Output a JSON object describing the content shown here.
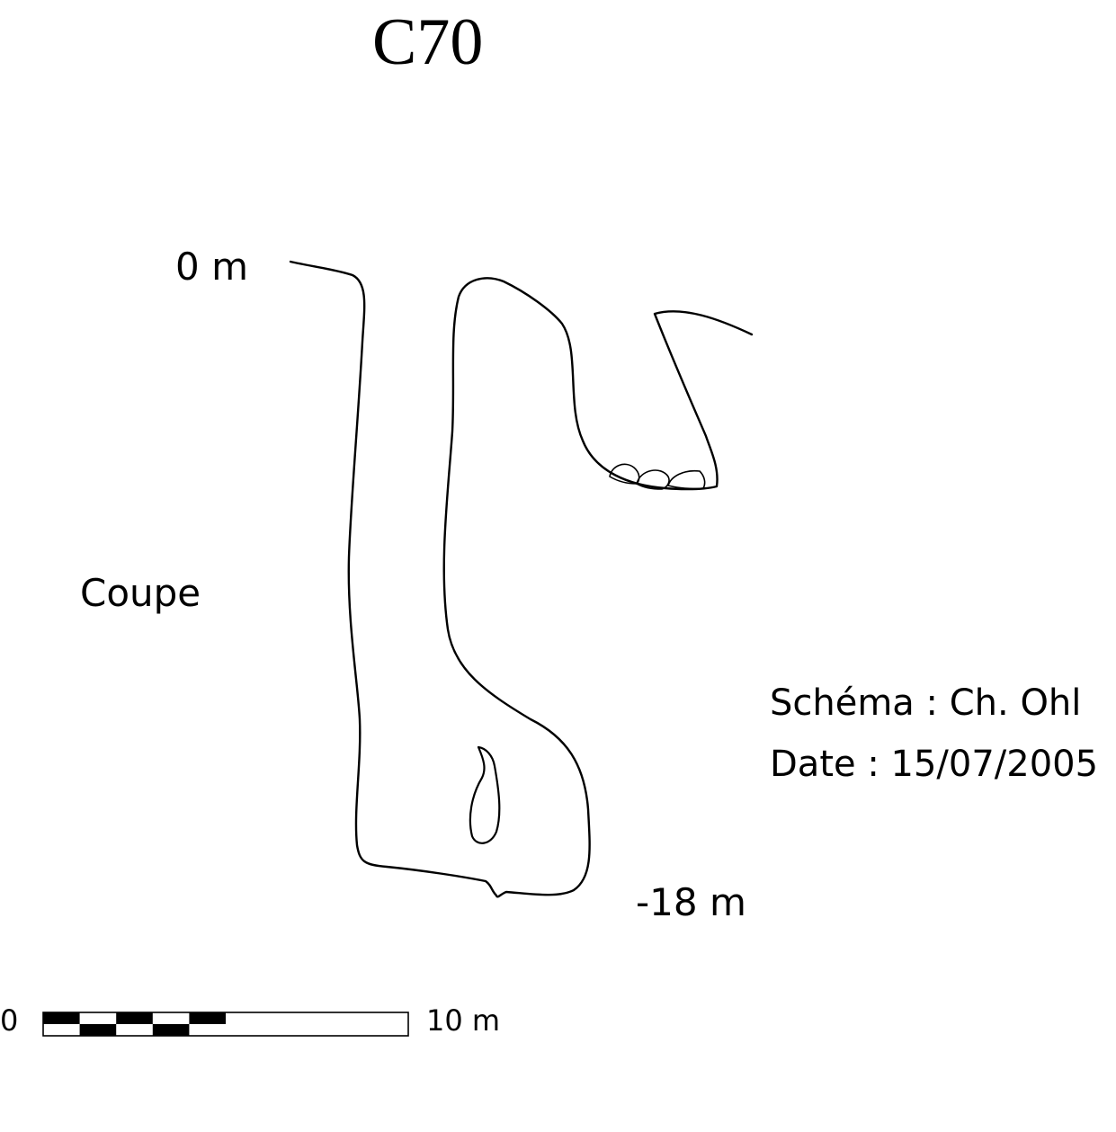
{
  "title": "C70",
  "depth_top": "0 m",
  "depth_bottom": "-18 m",
  "view_label": "Coupe",
  "credits": {
    "schema": "Schéma : Ch. Ohl",
    "date": "Date : 15/07/2005"
  },
  "scale": {
    "start_label": "0",
    "end_label": "10 m",
    "length_m": 10,
    "segments": 10,
    "filled_segments": 5
  },
  "colors": {
    "ink": "#000000",
    "background": "#ffffff"
  }
}
